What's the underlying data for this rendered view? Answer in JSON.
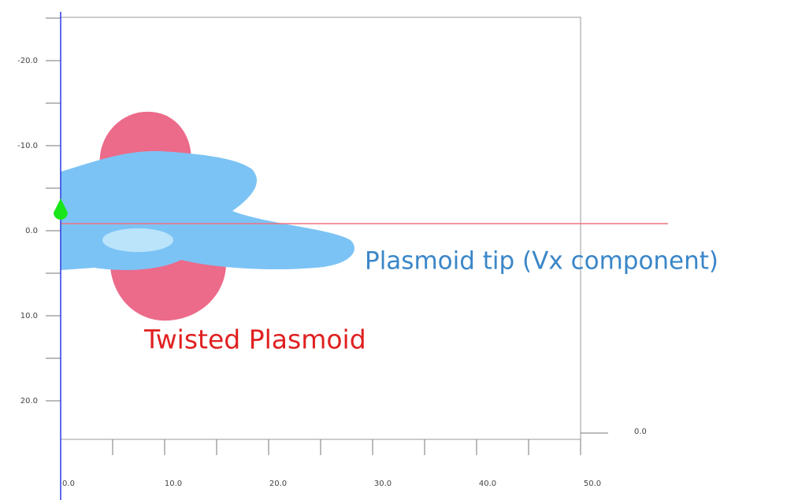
{
  "y_axis": {
    "labels": [
      "-20.0",
      "-10.0",
      "0.0",
      "10.0",
      "20.0"
    ]
  },
  "x_axis": {
    "labels": [
      "0.0",
      "10.0",
      "20.0",
      "30.0",
      "40.0",
      "50.0"
    ]
  },
  "z_axis": {
    "label": "0.0"
  },
  "annotations": {
    "tip": "Plasmoid tip (Vx component)",
    "twisted": "Twisted Plasmoid"
  }
}
